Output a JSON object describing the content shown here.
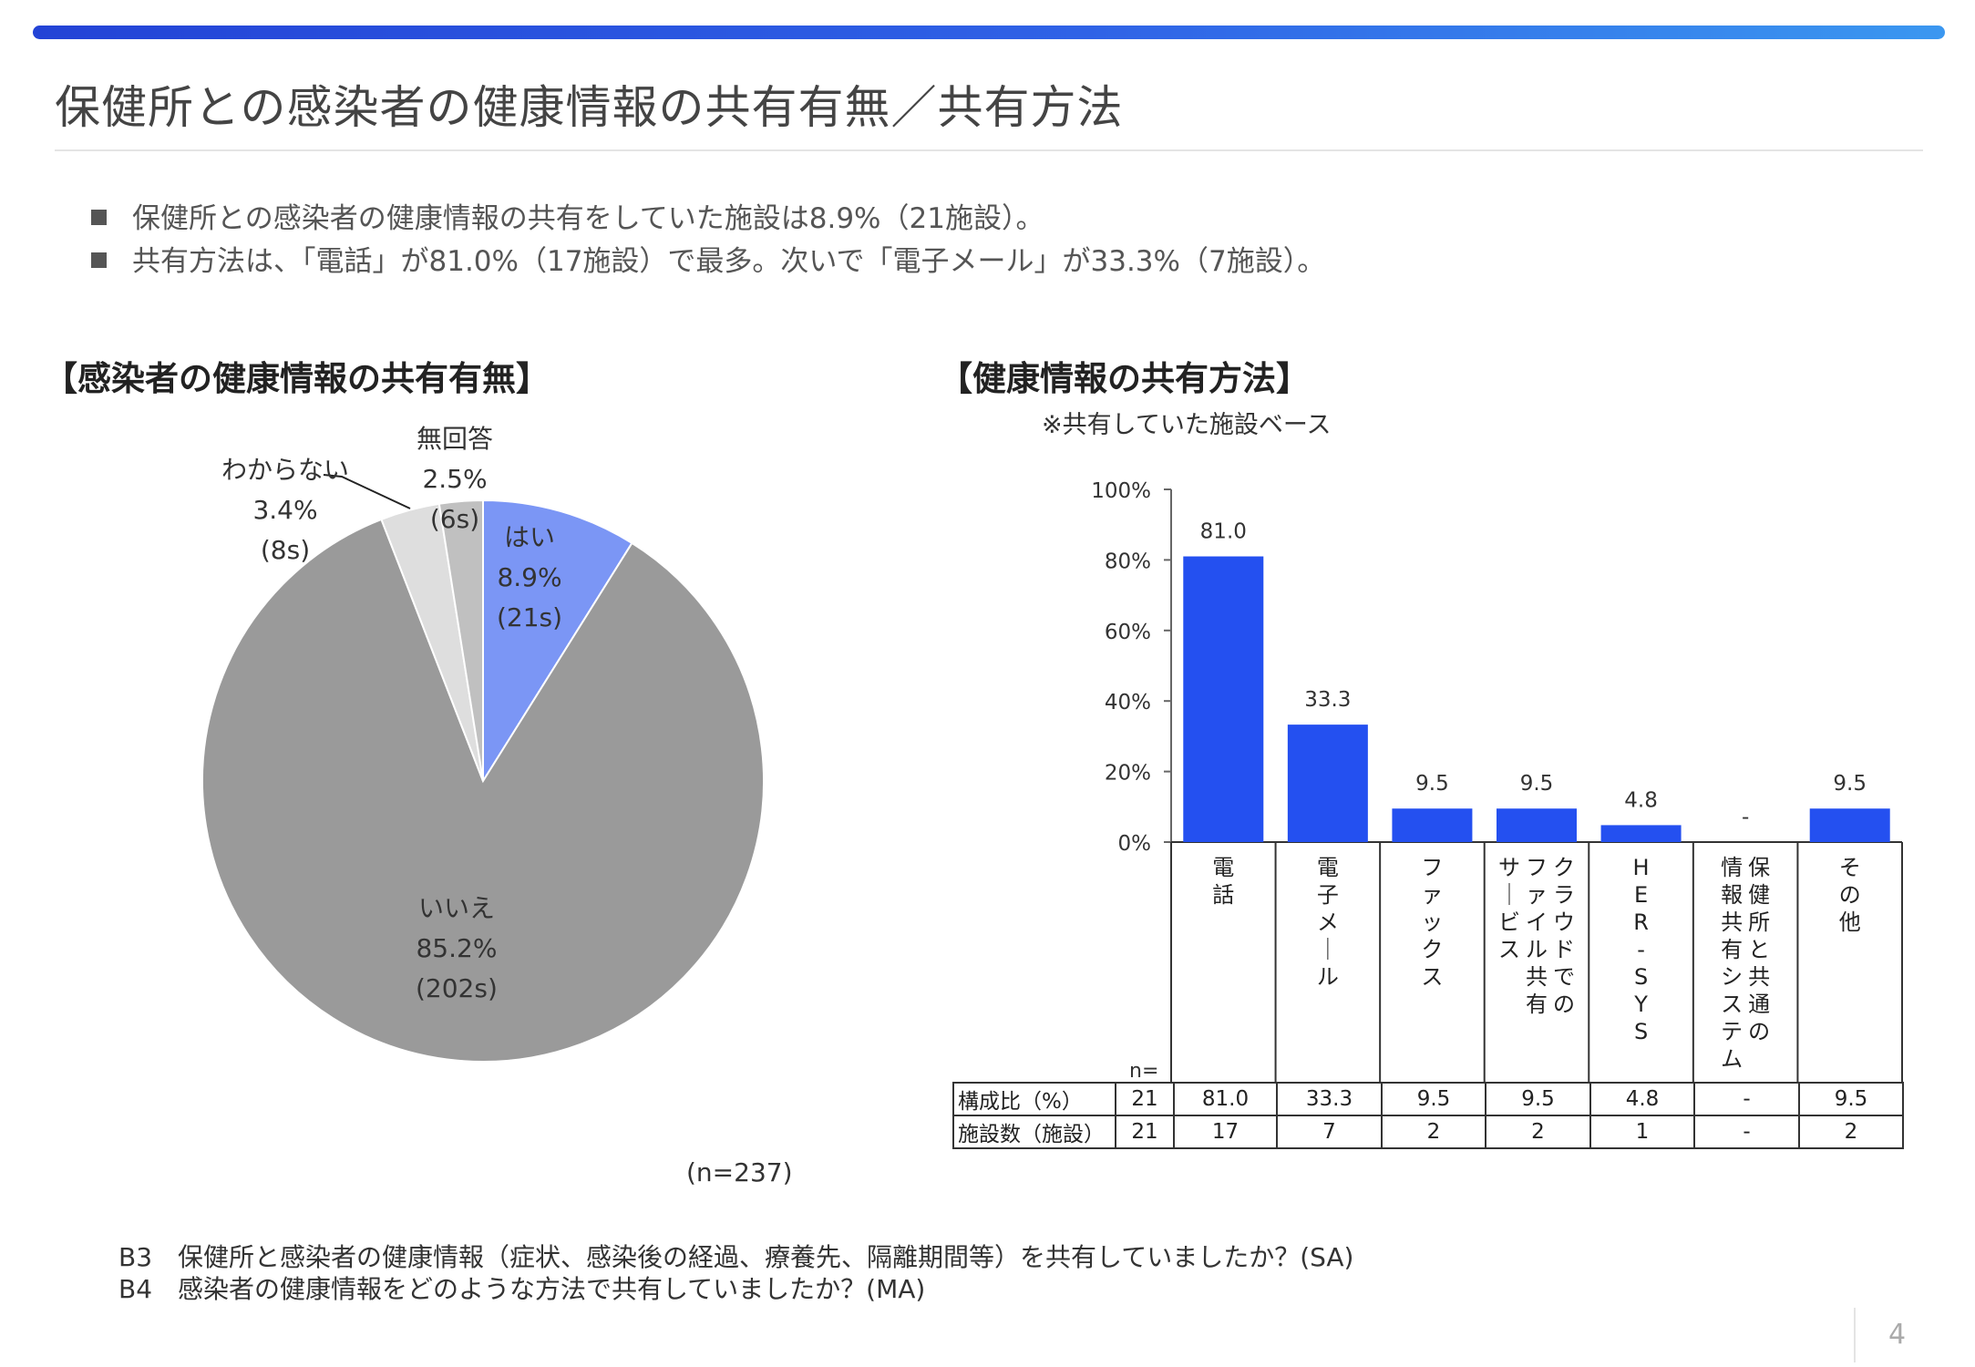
{
  "title": "保健所との感染者の健康情報の共有有無／共有方法",
  "bullets": [
    "保健所との感染者の健康情報の共有をしていた施設は8.9%（21施設）。",
    "共有方法は、「電話」が81.0%（17施設）で最多。次いで「電子メール」が33.3%（7施設）。"
  ],
  "colors": {
    "bar": "#2450f0",
    "pie_yes": "#7b96f5",
    "pie_no": "#9a9a9a",
    "pie_unknown": "#dedede",
    "pie_noanswer": "#c0c0c0"
  },
  "pie_title": "【感染者の健康情報の共有有無】",
  "bar_title": "【健康情報の共有方法】",
  "bar_note": "※共有していた施設ベース",
  "pie_n": "(n=237)",
  "table": {
    "n_label": "n=",
    "rows": [
      {
        "label": "構成比（%）",
        "n": "21",
        "cells": [
          "81.0",
          "33.3",
          "9.5",
          "9.5",
          "4.8",
          "-",
          "9.5"
        ]
      },
      {
        "label": "施設数（施設）",
        "n": "21",
        "cells": [
          "17",
          "7",
          "2",
          "2",
          "1",
          "-",
          "2"
        ]
      }
    ]
  },
  "footnotes": [
    "B3　保健所と感染者の健康情報（症状、感染後の経過、療養先、隔離期間等）を共有していましたか？(SA)",
    "B4　感染者の健康情報をどのような方法で共有していましたか？(MA)"
  ],
  "page_number": "4",
  "chart_data": [
    {
      "type": "pie",
      "title": "【感染者の健康情報の共有有無】",
      "slices": [
        {
          "label": "はい",
          "value": 8.9,
          "count": "(21s)",
          "percent_label": "8.9%",
          "color": "#7b96f5"
        },
        {
          "label": "いいえ",
          "value": 85.2,
          "count": "(202s)",
          "percent_label": "85.2%",
          "color": "#9a9a9a"
        },
        {
          "label": "わからない",
          "value": 3.4,
          "count": "(8s)",
          "percent_label": "3.4%",
          "color": "#dedede"
        },
        {
          "label": "無回答",
          "value": 2.5,
          "count": "(6s)",
          "percent_label": "2.5%",
          "color": "#c0c0c0"
        }
      ],
      "n": "(n=237)"
    },
    {
      "type": "bar",
      "title": "【健康情報の共有方法】",
      "categories": [
        "電話",
        "電子メール",
        "ファックス",
        "クラウドでのファイル共有サービス",
        "HER-SYS",
        "保健所と共通の情報共有システム",
        "その他"
      ],
      "category_columns": [
        [
          "電話"
        ],
        [
          "電子メール"
        ],
        [
          "ファックス"
        ],
        [
          "クラウドでの",
          "ファイル共有",
          "サービス"
        ],
        [
          "HER-SYS"
        ],
        [
          "保健所と共通の",
          "情報共有システム"
        ],
        [
          "その他"
        ]
      ],
      "values": [
        81.0,
        33.3,
        9.5,
        9.5,
        4.8,
        null,
        9.5
      ],
      "value_labels": [
        "81.0",
        "33.3",
        "9.5",
        "9.5",
        "4.8",
        "-",
        "9.5"
      ],
      "ylim": [
        0,
        100
      ],
      "yticks": [
        "0%",
        "20%",
        "40%",
        "60%",
        "80%",
        "100%"
      ],
      "color": "#2450f0"
    }
  ]
}
